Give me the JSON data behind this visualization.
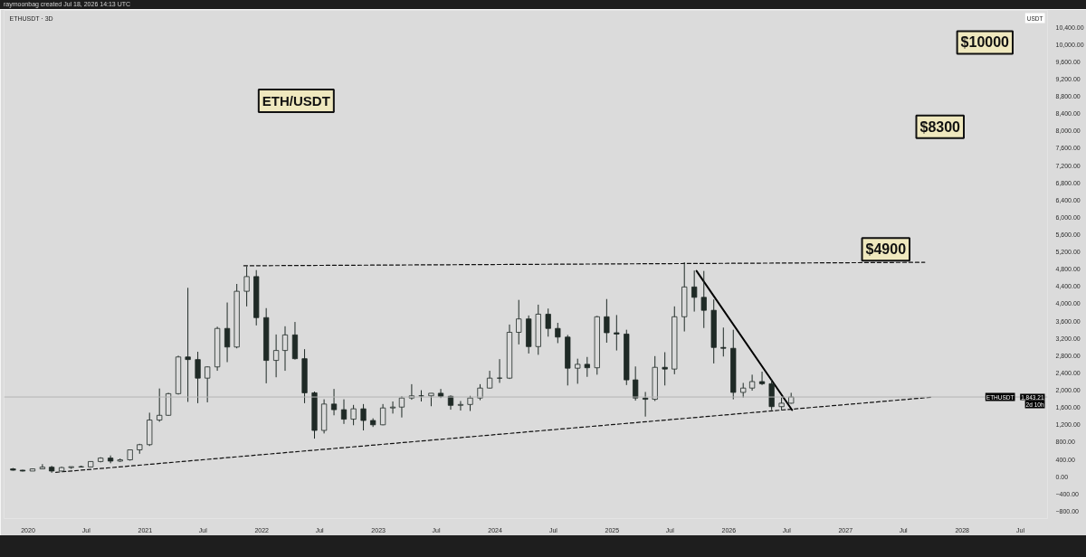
{
  "chart_data": {
    "type": "candlestick",
    "title": "ETH/USDT",
    "subtitle": "ETHUSDT · 3D",
    "ylabel": "USDT",
    "color": "#1f2a26",
    "x": [
      "2019-11-15",
      "2019-12-15",
      "2020-01-15",
      "2020-02-15",
      "2020-03-15",
      "2020-04-15",
      "2020-05-15",
      "2020-06-15",
      "2020-07-15",
      "2020-08-15",
      "2020-09-15",
      "2020-10-15",
      "2020-11-15",
      "2020-12-15",
      "2021-01-15",
      "2021-02-15",
      "2021-03-15",
      "2021-04-15",
      "2021-05-15",
      "2021-06-15",
      "2021-07-15",
      "2021-08-15",
      "2021-09-15",
      "2021-10-15",
      "2021-11-15",
      "2021-12-15",
      "2022-01-15",
      "2022-02-15",
      "2022-03-15",
      "2022-04-15",
      "2022-05-15",
      "2022-06-15",
      "2022-07-15",
      "2022-08-15",
      "2022-09-15",
      "2022-10-15",
      "2022-11-15",
      "2022-12-15",
      "2023-01-15",
      "2023-02-15",
      "2023-03-15",
      "2023-04-15",
      "2023-05-15",
      "2023-06-15",
      "2023-07-15",
      "2023-08-15",
      "2023-09-15",
      "2023-10-15",
      "2023-11-15",
      "2023-12-15",
      "2024-01-15",
      "2024-02-15",
      "2024-03-15",
      "2024-04-15",
      "2024-05-15",
      "2024-06-15",
      "2024-07-15",
      "2024-08-15",
      "2024-09-15",
      "2024-10-15",
      "2024-11-15",
      "2024-12-15",
      "2025-01-15",
      "2025-02-15",
      "2025-03-15",
      "2025-04-15",
      "2025-05-15",
      "2025-06-15",
      "2025-07-15",
      "2025-08-15",
      "2025-09-15",
      "2025-10-15",
      "2025-11-15",
      "2025-12-15",
      "2026-01-15",
      "2026-02-15",
      "2026-03-15",
      "2026-04-15",
      "2026-05-15",
      "2026-06-15",
      "2026-07-15"
    ],
    "ohlc": [
      [
        180,
        200,
        140,
        150
      ],
      [
        150,
        160,
        120,
        130
      ],
      [
        130,
        190,
        130,
        180
      ],
      [
        180,
        290,
        180,
        220
      ],
      [
        220,
        250,
        90,
        130
      ],
      [
        130,
        230,
        130,
        210
      ],
      [
        210,
        230,
        180,
        230
      ],
      [
        230,
        255,
        215,
        225
      ],
      [
        225,
        350,
        220,
        350
      ],
      [
        350,
        450,
        330,
        430
      ],
      [
        430,
        490,
        310,
        360
      ],
      [
        360,
        420,
        340,
        390
      ],
      [
        390,
        620,
        370,
        620
      ],
      [
        620,
        760,
        530,
        740
      ],
      [
        740,
        1480,
        710,
        1310
      ],
      [
        1310,
        2040,
        1270,
        1420
      ],
      [
        1420,
        1940,
        1410,
        1920
      ],
      [
        1920,
        2800,
        1900,
        2770
      ],
      [
        2770,
        4370,
        1730,
        2710
      ],
      [
        2710,
        2890,
        1700,
        2280
      ],
      [
        2280,
        2550,
        1720,
        2540
      ],
      [
        2540,
        3470,
        2450,
        3430
      ],
      [
        3430,
        4030,
        2650,
        3000
      ],
      [
        3000,
        4460,
        2970,
        4290
      ],
      [
        4290,
        4870,
        3940,
        4630
      ],
      [
        4630,
        4780,
        3500,
        3680
      ],
      [
        3680,
        3900,
        2160,
        2690
      ],
      [
        2690,
        3290,
        2300,
        2920
      ],
      [
        2920,
        3480,
        2450,
        3280
      ],
      [
        3280,
        3580,
        2710,
        2730
      ],
      [
        2730,
        2950,
        1700,
        1940
      ],
      [
        1940,
        1970,
        880,
        1070
      ],
      [
        1070,
        1790,
        1000,
        1680
      ],
      [
        1680,
        2030,
        1420,
        1550
      ],
      [
        1550,
        1790,
        1220,
        1330
      ],
      [
        1330,
        1660,
        1190,
        1570
      ],
      [
        1570,
        1680,
        1070,
        1300
      ],
      [
        1300,
        1350,
        1150,
        1200
      ],
      [
        1200,
        1680,
        1190,
        1590
      ],
      [
        1590,
        1740,
        1460,
        1610
      ],
      [
        1610,
        1860,
        1370,
        1820
      ],
      [
        1820,
        2140,
        1780,
        1870
      ],
      [
        1870,
        2000,
        1740,
        1870
      ],
      [
        1870,
        1930,
        1630,
        1930
      ],
      [
        1930,
        2030,
        1820,
        1860
      ],
      [
        1860,
        1880,
        1550,
        1650
      ],
      [
        1650,
        1750,
        1530,
        1670
      ],
      [
        1670,
        1870,
        1520,
        1820
      ],
      [
        1820,
        2140,
        1770,
        2050
      ],
      [
        2050,
        2450,
        2040,
        2280
      ],
      [
        2280,
        2720,
        2170,
        2280
      ],
      [
        2280,
        3520,
        2260,
        3340
      ],
      [
        3340,
        4090,
        3060,
        3650
      ],
      [
        3650,
        3730,
        2850,
        3010
      ],
      [
        3010,
        3980,
        2820,
        3760
      ],
      [
        3760,
        3890,
        3240,
        3430
      ],
      [
        3430,
        3560,
        3090,
        3230
      ],
      [
        3230,
        3280,
        2110,
        2510
      ],
      [
        2510,
        2730,
        2150,
        2600
      ],
      [
        2600,
        2770,
        2310,
        2520
      ],
      [
        2520,
        3720,
        2360,
        3700
      ],
      [
        3700,
        4110,
        3100,
        3330
      ],
      [
        3330,
        3740,
        2920,
        3300
      ],
      [
        3300,
        3400,
        2120,
        2240
      ],
      [
        2240,
        2550,
        1760,
        1820
      ],
      [
        1820,
        1960,
        1390,
        1790
      ],
      [
        1790,
        2790,
        1750,
        2530
      ],
      [
        2530,
        2880,
        2110,
        2490
      ],
      [
        2490,
        3940,
        2370,
        3700
      ],
      [
        3700,
        4960,
        3360,
        4390
      ],
      [
        4390,
        4770,
        3820,
        4150
      ],
      [
        4150,
        4760,
        3440,
        3850
      ],
      [
        3850,
        4100,
        2620,
        2990
      ],
      [
        2990,
        3450,
        2780,
        2970
      ],
      [
        2970,
        3400,
        1790,
        1950
      ],
      [
        1950,
        2170,
        1830,
        2050
      ],
      [
        2050,
        2360,
        1990,
        2200
      ],
      [
        2200,
        2430,
        2120,
        2150
      ],
      [
        2150,
        2250,
        1540,
        1620
      ],
      [
        1620,
        1830,
        1540,
        1700
      ],
      [
        1700,
        1940,
        1690,
        1843.21
      ]
    ],
    "series": [
      {
        "type": "line",
        "x": [
          "2021-11-06",
          "2027-09-06"
        ],
        "values": [
          4880,
          4960
        ],
        "color": "#111111",
        "line_style": "dashed"
      },
      {
        "type": "line",
        "x": [
          "2020-03-28",
          "2027-09-30"
        ],
        "values": [
          100,
          1840
        ],
        "color": "#111111",
        "line_style": "dashed"
      },
      {
        "type": "line",
        "x": [
          "2025-09-22",
          "2026-07-18"
        ],
        "values": [
          4760,
          1540
        ],
        "color": "#000000",
        "line_style": "solid"
      }
    ],
    "ref_lines": [
      {
        "axis": "y",
        "value": 1843.21,
        "label": "ETHUSDT",
        "color": "#b4b4b4"
      }
    ],
    "annotations": [
      "raymoonbag created Jul 18, 2026 14:13 UTC",
      "1,843.21",
      "2d 10h",
      "$4900",
      "$8300",
      "$10000"
    ],
    "xlim": [
      "2019-10-18",
      "2028-09-24"
    ],
    "xticks": [
      {
        "value": "2020-01-01",
        "label": "2020"
      },
      {
        "value": "2020-07-01",
        "label": "Jul"
      },
      {
        "value": "2021-01-01",
        "label": "2021"
      },
      {
        "value": "2021-07-01",
        "label": "Jul"
      },
      {
        "value": "2022-01-01",
        "label": "2022"
      },
      {
        "value": "2022-07-01",
        "label": "Jul"
      },
      {
        "value": "2023-01-01",
        "label": "2023"
      },
      {
        "value": "2023-07-01",
        "label": "Jul"
      },
      {
        "value": "2024-01-01",
        "label": "2024"
      },
      {
        "value": "2024-07-01",
        "label": "Jul"
      },
      {
        "value": "2025-01-01",
        "label": "2025"
      },
      {
        "value": "2025-07-01",
        "label": "Jul"
      },
      {
        "value": "2026-01-01",
        "label": "2026"
      },
      {
        "value": "2026-07-01",
        "label": "Jul"
      },
      {
        "value": "2027-01-01",
        "label": "2027"
      },
      {
        "value": "2027-07-01",
        "label": "Jul"
      },
      {
        "value": "2028-01-01",
        "label": "2028"
      },
      {
        "value": "2028-07-01",
        "label": "Jul"
      }
    ],
    "ylim": [
      -970,
      10790
    ],
    "yticks": [
      {
        "value": -800,
        "label": "−800.00"
      },
      {
        "value": -400,
        "label": "−400.00"
      },
      {
        "value": 0,
        "label": "0.00"
      },
      {
        "value": 400,
        "label": "400.00"
      },
      {
        "value": 800,
        "label": "800.00"
      },
      {
        "value": 1200,
        "label": "1,200.00"
      },
      {
        "value": 1600,
        "label": "1,600.00"
      },
      {
        "value": 2000,
        "label": "2,000.00"
      },
      {
        "value": 2400,
        "label": "2,400.00"
      },
      {
        "value": 2800,
        "label": "2,800.00"
      },
      {
        "value": 3200,
        "label": "3,200.00"
      },
      {
        "value": 3600,
        "label": "3,600.00"
      },
      {
        "value": 4000,
        "label": "4,000.00"
      },
      {
        "value": 4400,
        "label": "4,400.00"
      },
      {
        "value": 4800,
        "label": "4,800.00"
      },
      {
        "value": 5200,
        "label": "5,200.00"
      },
      {
        "value": 5600,
        "label": "5,600.00"
      },
      {
        "value": 6000,
        "label": "6,000.00"
      },
      {
        "value": 6400,
        "label": "6,400.00"
      },
      {
        "value": 6800,
        "label": "6,800.00"
      },
      {
        "value": 7200,
        "label": "7,200.00"
      },
      {
        "value": 7600,
        "label": "7,600.00"
      },
      {
        "value": 8000,
        "label": "8,000.00"
      },
      {
        "value": 8400,
        "label": "8,400.00"
      },
      {
        "value": 8800,
        "label": "8,800.00"
      },
      {
        "value": 9200,
        "label": "9,200.00"
      },
      {
        "value": 9600,
        "label": "9,600.00"
      },
      {
        "value": 10000,
        "label": "10,000.00"
      },
      {
        "value": 10400,
        "label": "10,400.00"
      }
    ]
  }
}
